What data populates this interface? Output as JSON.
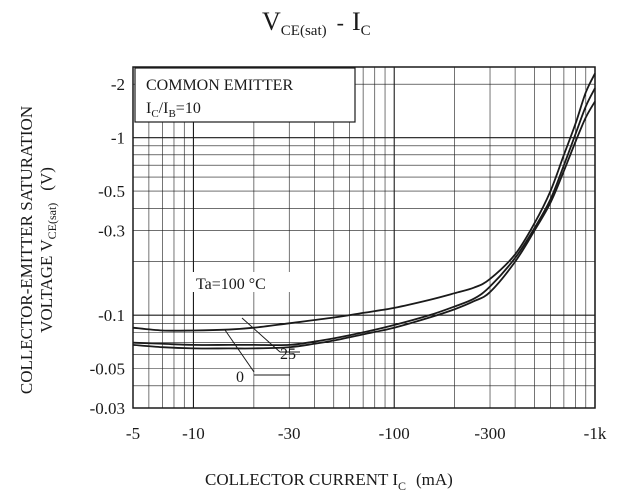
{
  "chart_data": {
    "type": "line",
    "title_main": "V",
    "title_main_sub": "CE(sat)",
    "title_sep": "-",
    "title_second": "I",
    "title_second_sub": "C",
    "xlabel_main": "COLLECTOR CURRENT I",
    "xlabel_sub": "C",
    "xlabel_unit": "(mA)",
    "ylabel_line1": "COLLECTOR-EMITTER SATURATION",
    "ylabel_line2_main": "VOLTAGE V",
    "ylabel_line2_sub": "CE(sat)",
    "ylabel_line2_unit": "(V)",
    "x_scale": "log",
    "y_scale": "log",
    "x_range_mA": [
      -5,
      -1000
    ],
    "y_range_V": [
      -0.03,
      -2.5
    ],
    "grid": true,
    "x_ticks": [
      {
        "value": -5,
        "label": "-5"
      },
      {
        "value": -10,
        "label": "-10"
      },
      {
        "value": -30,
        "label": "-30"
      },
      {
        "value": -100,
        "label": "-100"
      },
      {
        "value": -300,
        "label": "-300"
      },
      {
        "value": -1000,
        "label": "-1k"
      }
    ],
    "y_ticks": [
      {
        "value": -2,
        "label": "-2"
      },
      {
        "value": -1,
        "label": "-1"
      },
      {
        "value": -0.5,
        "label": "-0.5"
      },
      {
        "value": -0.3,
        "label": "-0.3"
      },
      {
        "value": -0.1,
        "label": "-0.1"
      },
      {
        "value": -0.05,
        "label": "-0.05"
      },
      {
        "value": -0.03,
        "label": "-0.03"
      }
    ],
    "legend_box": {
      "line1": "COMMON EMITTER",
      "line2_a": "I",
      "line2_a_sub": "C",
      "line2_sep": "/I",
      "line2_b_sub": "B",
      "line2_tail": "=10"
    },
    "series": [
      {
        "name": "Ta=100 °C",
        "x": [
          -5,
          -7,
          -10,
          -15,
          -20,
          -30,
          -50,
          -70,
          -100,
          -150,
          -200,
          -250,
          -300,
          -400,
          -500,
          -600,
          -700,
          -800,
          -900,
          -1000
        ],
        "y": [
          -0.085,
          -0.082,
          -0.082,
          -0.083,
          -0.085,
          -0.09,
          -0.097,
          -0.103,
          -0.11,
          -0.122,
          -0.133,
          -0.143,
          -0.16,
          -0.22,
          -0.33,
          -0.5,
          -0.8,
          -1.2,
          -1.8,
          -2.3
        ]
      },
      {
        "name": "25",
        "x": [
          -5,
          -7,
          -10,
          -15,
          -20,
          -30,
          -40,
          -50,
          -70,
          -100,
          -150,
          -200,
          -250,
          -300,
          -400,
          -500,
          -600,
          -700,
          -800,
          -900,
          -1000
        ],
        "y": [
          -0.07,
          -0.069,
          -0.068,
          -0.068,
          -0.068,
          -0.068,
          -0.071,
          -0.074,
          -0.08,
          -0.088,
          -0.1,
          -0.112,
          -0.124,
          -0.145,
          -0.21,
          -0.31,
          -0.45,
          -0.7,
          -1.05,
          -1.5,
          -1.9
        ]
      },
      {
        "name": "0",
        "x": [
          -5,
          -7,
          -10,
          -15,
          -20,
          -30,
          -40,
          -50,
          -70,
          -100,
          -150,
          -200,
          -250,
          -300,
          -400,
          -500,
          -600,
          -700,
          -800,
          -900,
          -1000
        ],
        "y": [
          -0.068,
          -0.066,
          -0.065,
          -0.065,
          -0.065,
          -0.066,
          -0.069,
          -0.072,
          -0.078,
          -0.085,
          -0.097,
          -0.108,
          -0.12,
          -0.135,
          -0.2,
          -0.3,
          -0.43,
          -0.65,
          -0.95,
          -1.3,
          -1.6
        ]
      }
    ],
    "annotations": [
      {
        "text": "Ta=100 °C",
        "series": "Ta=100 °C"
      },
      {
        "text": "25",
        "series": "25"
      },
      {
        "text": "0",
        "series": "0"
      }
    ]
  }
}
